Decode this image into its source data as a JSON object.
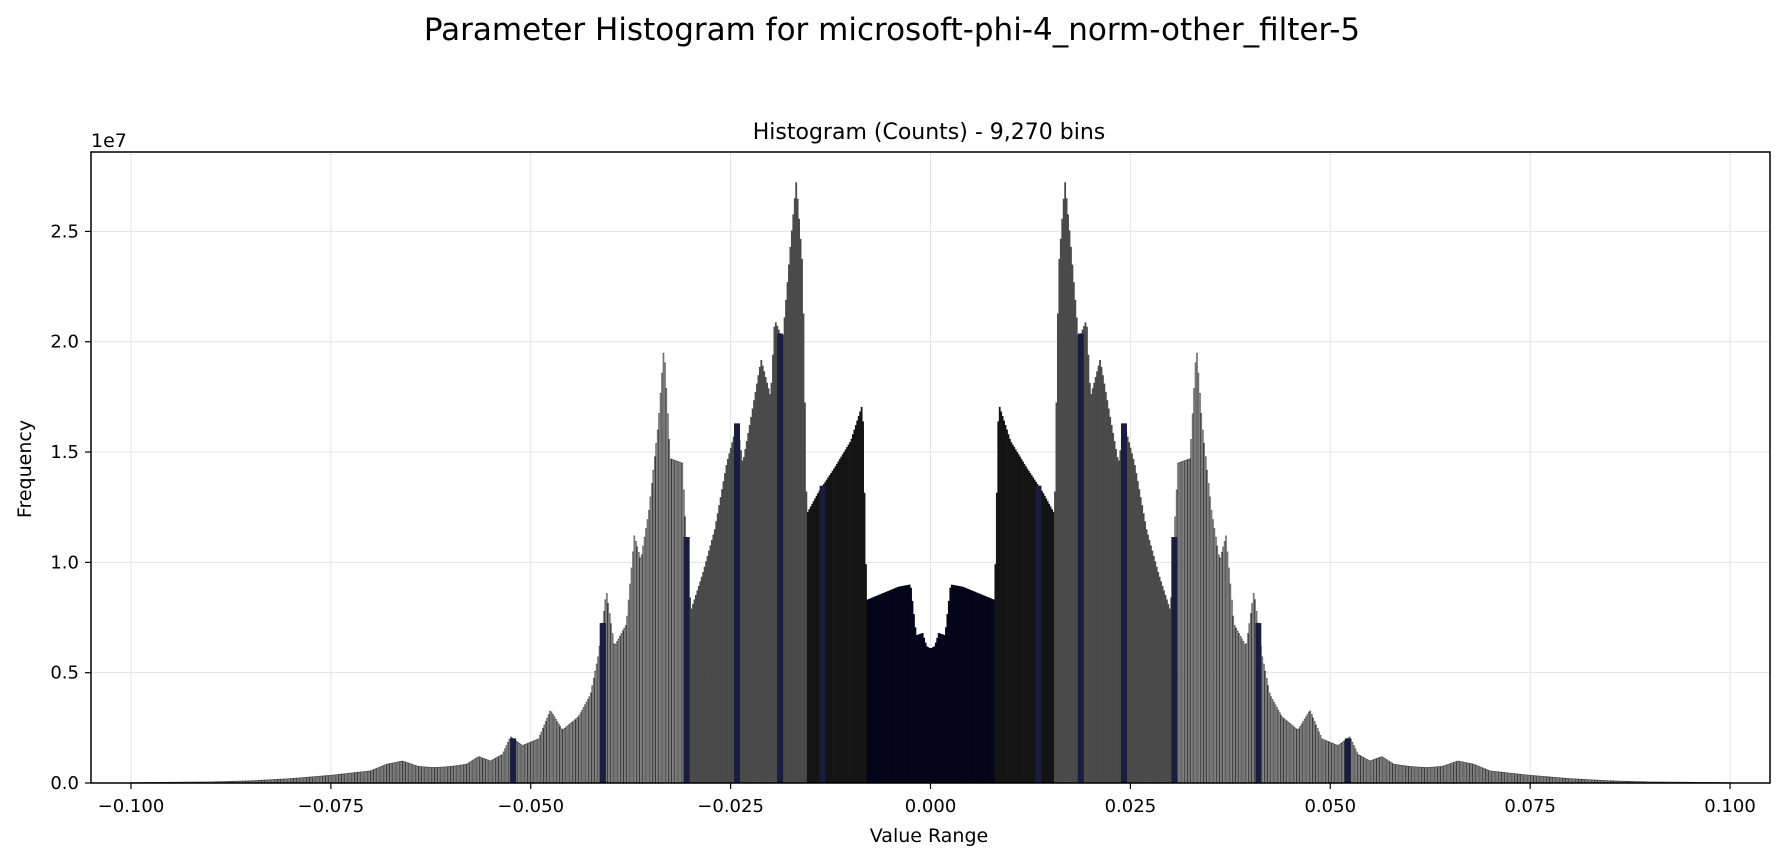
{
  "figure": {
    "suptitle": "Parameter Histogram for microsoft-phi-4_norm-other_filter-5"
  },
  "chart_data": {
    "type": "bar",
    "title": "Histogram (Counts) - 9,270 bins",
    "xlabel": "Value Range",
    "ylabel": "Frequency",
    "y_offset_label": "1e7",
    "xlim": [
      -0.105,
      0.105
    ],
    "ylim": [
      0,
      28.6
    ],
    "y_scale_factor": 10000000,
    "grid": true,
    "bin_count": 9270,
    "x_ticks": [
      -0.1,
      -0.075,
      -0.05,
      -0.025,
      0.0,
      0.025,
      0.05,
      0.075,
      0.1
    ],
    "x_tick_labels": [
      "−0.100",
      "−0.075",
      "−0.050",
      "−0.025",
      "0.000",
      "0.025",
      "0.050",
      "0.075",
      "0.100"
    ],
    "y_ticks": [
      0,
      5,
      10,
      15,
      20,
      25
    ],
    "y_tick_labels": [
      "0.0",
      "0.5",
      "1.0",
      "1.5",
      "2.0",
      "2.5"
    ],
    "colors": {
      "outer_bars": "#bdbdbd",
      "mid_bars": "#4a4a4a",
      "inner_bars": "#141414",
      "center_bars": "#05051a",
      "navy_bars": "#1c1c40",
      "grid": "#e3e3e3"
    },
    "envelope_points": [
      [
        -0.1,
        0.02
      ],
      [
        -0.09,
        0.05
      ],
      [
        -0.085,
        0.1
      ],
      [
        -0.08,
        0.2
      ],
      [
        -0.075,
        0.35
      ],
      [
        -0.07,
        0.55
      ],
      [
        -0.068,
        0.85
      ],
      [
        -0.066,
        1.0
      ],
      [
        -0.064,
        0.75
      ],
      [
        -0.062,
        0.7
      ],
      [
        -0.06,
        0.75
      ],
      [
        -0.058,
        0.85
      ],
      [
        -0.0565,
        1.2
      ],
      [
        -0.055,
        1.0
      ],
      [
        -0.0535,
        1.3
      ],
      [
        -0.0525,
        2.1
      ],
      [
        -0.051,
        1.7
      ],
      [
        -0.049,
        2.0
      ],
      [
        -0.0475,
        3.3
      ],
      [
        -0.046,
        2.4
      ],
      [
        -0.044,
        3.0
      ],
      [
        -0.0425,
        4.0
      ],
      [
        -0.0415,
        5.8
      ],
      [
        -0.0405,
        8.7
      ],
      [
        -0.0395,
        6.2
      ],
      [
        -0.038,
        7.2
      ],
      [
        -0.037,
        11.2
      ],
      [
        -0.0362,
        10.1
      ],
      [
        -0.0352,
        12.3
      ],
      [
        -0.034,
        16.3
      ],
      [
        -0.0333,
        19.8
      ],
      [
        -0.0325,
        14.7
      ],
      [
        -0.031,
        14.5
      ],
      [
        -0.03,
        7.8
      ],
      [
        -0.0285,
        9.5
      ],
      [
        -0.027,
        11.5
      ],
      [
        -0.0255,
        14.5
      ],
      [
        -0.0242,
        16.3
      ],
      [
        -0.0235,
        14.5
      ],
      [
        -0.0225,
        16.5
      ],
      [
        -0.0212,
        19.2
      ],
      [
        -0.02,
        17.5
      ],
      [
        -0.0195,
        21.0
      ],
      [
        -0.0185,
        20.1
      ],
      [
        -0.0175,
        24.5
      ],
      [
        -0.0168,
        27.3
      ],
      [
        -0.016,
        23.3
      ],
      [
        -0.0155,
        12.2
      ],
      [
        -0.014,
        13.2
      ],
      [
        -0.012,
        14.3
      ],
      [
        -0.01,
        15.5
      ],
      [
        -0.0085,
        17.2
      ],
      [
        -0.008,
        8.3
      ],
      [
        -0.006,
        8.6
      ],
      [
        -0.004,
        8.9
      ],
      [
        -0.0025,
        9.0
      ],
      [
        -0.0018,
        6.7
      ],
      [
        -0.001,
        6.8
      ],
      [
        -0.0005,
        6.2
      ],
      [
        0.0,
        6.1
      ],
      [
        0.0005,
        6.2
      ],
      [
        0.001,
        6.8
      ],
      [
        0.0018,
        6.7
      ],
      [
        0.0025,
        9.0
      ],
      [
        0.004,
        8.9
      ],
      [
        0.006,
        8.6
      ],
      [
        0.008,
        8.3
      ],
      [
        0.0085,
        17.2
      ],
      [
        0.01,
        15.5
      ],
      [
        0.012,
        14.3
      ],
      [
        0.014,
        13.2
      ],
      [
        0.0155,
        12.2
      ],
      [
        0.016,
        23.3
      ],
      [
        0.0168,
        27.3
      ],
      [
        0.0175,
        24.5
      ],
      [
        0.0185,
        20.1
      ],
      [
        0.0195,
        21.0
      ],
      [
        0.02,
        17.5
      ],
      [
        0.0212,
        19.2
      ],
      [
        0.0225,
        16.5
      ],
      [
        0.0235,
        14.5
      ],
      [
        0.0242,
        16.3
      ],
      [
        0.0255,
        14.5
      ],
      [
        0.027,
        11.5
      ],
      [
        0.0285,
        9.5
      ],
      [
        0.03,
        7.8
      ],
      [
        0.031,
        14.5
      ],
      [
        0.0325,
        14.7
      ],
      [
        0.0333,
        19.8
      ],
      [
        0.034,
        16.3
      ],
      [
        0.0352,
        12.3
      ],
      [
        0.0362,
        10.1
      ],
      [
        0.037,
        11.2
      ],
      [
        0.038,
        7.2
      ],
      [
        0.0395,
        6.2
      ],
      [
        0.0405,
        8.7
      ],
      [
        0.0415,
        5.8
      ],
      [
        0.0425,
        4.0
      ],
      [
        0.044,
        3.0
      ],
      [
        0.046,
        2.4
      ],
      [
        0.0475,
        3.3
      ],
      [
        0.049,
        2.0
      ],
      [
        0.051,
        1.7
      ],
      [
        0.0525,
        2.1
      ],
      [
        0.0535,
        1.3
      ],
      [
        0.055,
        1.0
      ],
      [
        0.0565,
        1.2
      ],
      [
        0.058,
        0.85
      ],
      [
        0.06,
        0.75
      ],
      [
        0.062,
        0.7
      ],
      [
        0.064,
        0.75
      ],
      [
        0.066,
        1.0
      ],
      [
        0.068,
        0.85
      ],
      [
        0.07,
        0.55
      ],
      [
        0.075,
        0.35
      ],
      [
        0.08,
        0.2
      ],
      [
        0.085,
        0.1
      ],
      [
        0.09,
        0.05
      ],
      [
        0.1,
        0.02
      ]
    ],
    "color_bands": [
      {
        "from": -0.105,
        "to": -0.0305,
        "color_key": "outer_bars"
      },
      {
        "from": -0.0305,
        "to": -0.0155,
        "color_key": "mid_bars"
      },
      {
        "from": -0.0155,
        "to": -0.008,
        "color_key": "inner_bars"
      },
      {
        "from": -0.008,
        "to": 0.008,
        "color_key": "center_bars"
      },
      {
        "from": 0.008,
        "to": 0.0155,
        "color_key": "inner_bars"
      },
      {
        "from": 0.0155,
        "to": 0.0305,
        "color_key": "mid_bars"
      },
      {
        "from": 0.0305,
        "to": 0.105,
        "color_key": "outer_bars"
      }
    ]
  }
}
